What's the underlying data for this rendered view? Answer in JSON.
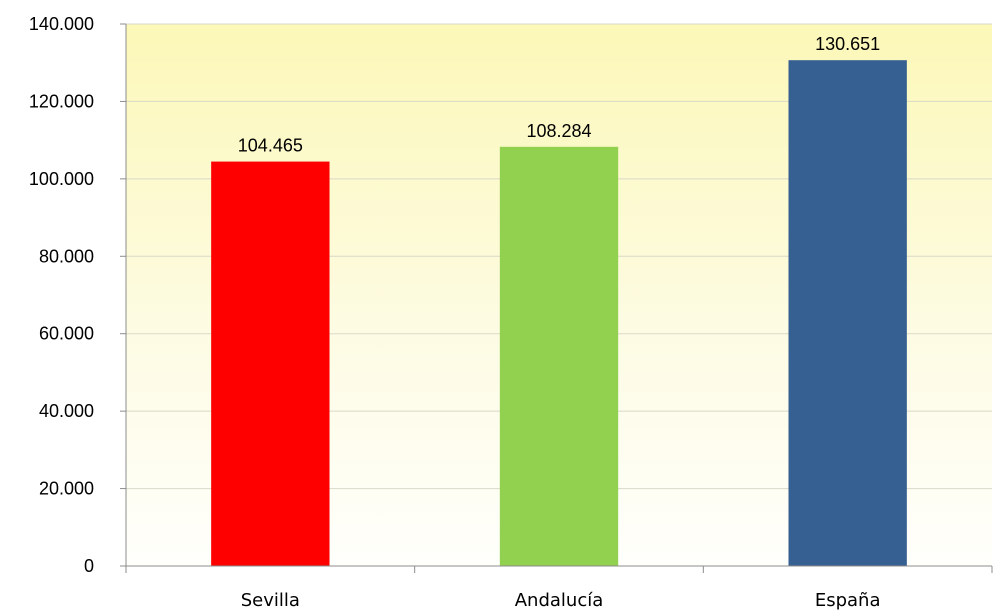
{
  "chart_data": {
    "type": "bar",
    "categories": [
      "Sevilla",
      "Andalucía",
      "España"
    ],
    "values": [
      104465,
      108284,
      130651
    ],
    "value_labels": [
      "104.465",
      "108.284",
      "130.651"
    ],
    "bar_colors": [
      "#ff0000",
      "#92d050",
      "#376092"
    ],
    "ylim": [
      0,
      140000
    ],
    "y_ticks": [
      0,
      20000,
      40000,
      60000,
      80000,
      100000,
      120000,
      140000
    ],
    "y_tick_labels": [
      "0",
      "20.000",
      "40.000",
      "60.000",
      "80.000",
      "100.000",
      "120.000",
      "140.000"
    ],
    "grid": true,
    "plot_background": "yellow-to-white vertical gradient",
    "title": "",
    "xlabel": "",
    "ylabel": ""
  }
}
